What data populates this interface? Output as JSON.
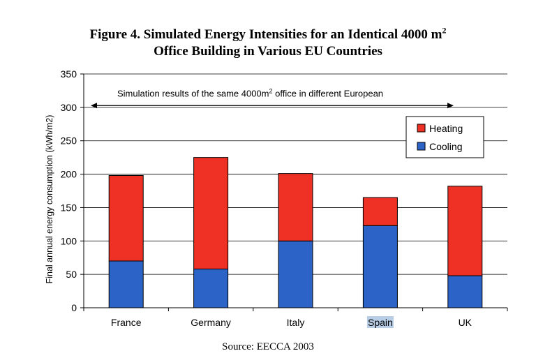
{
  "figure": {
    "title_line1_main": "Figure 4. Simulated Energy Intensities for an Identical 4000 m",
    "title_line1_sup": "2",
    "title_line2": "Office Building in Various EU Countries",
    "source": "Source: EECCA 2003"
  },
  "chart_data": {
    "type": "bar",
    "stacked": true,
    "categories": [
      "France",
      "Germany",
      "Italy",
      "Spain",
      "UK"
    ],
    "highlighted_category": "Spain",
    "series": [
      {
        "name": "Cooling",
        "values": [
          70,
          58,
          100,
          123,
          48
        ],
        "color": "#2b63c7"
      },
      {
        "name": "Heating",
        "values": [
          128,
          167,
          101,
          42,
          134
        ],
        "color": "#ee3124"
      }
    ],
    "legend_order": [
      "Heating",
      "Cooling"
    ],
    "ylabel": "Final annual energy consumption (kWh/m2)",
    "xlabel": "",
    "ylim": [
      0,
      350
    ],
    "yticks": [
      0,
      50,
      100,
      150,
      200,
      250,
      300,
      350
    ],
    "grid": true,
    "legend_position": "top-right",
    "annotation": {
      "text_before_sup": "Simulation results of the same 4000m",
      "sup": "2",
      "text_after_sup": " office in different European",
      "y_value": 310
    }
  }
}
